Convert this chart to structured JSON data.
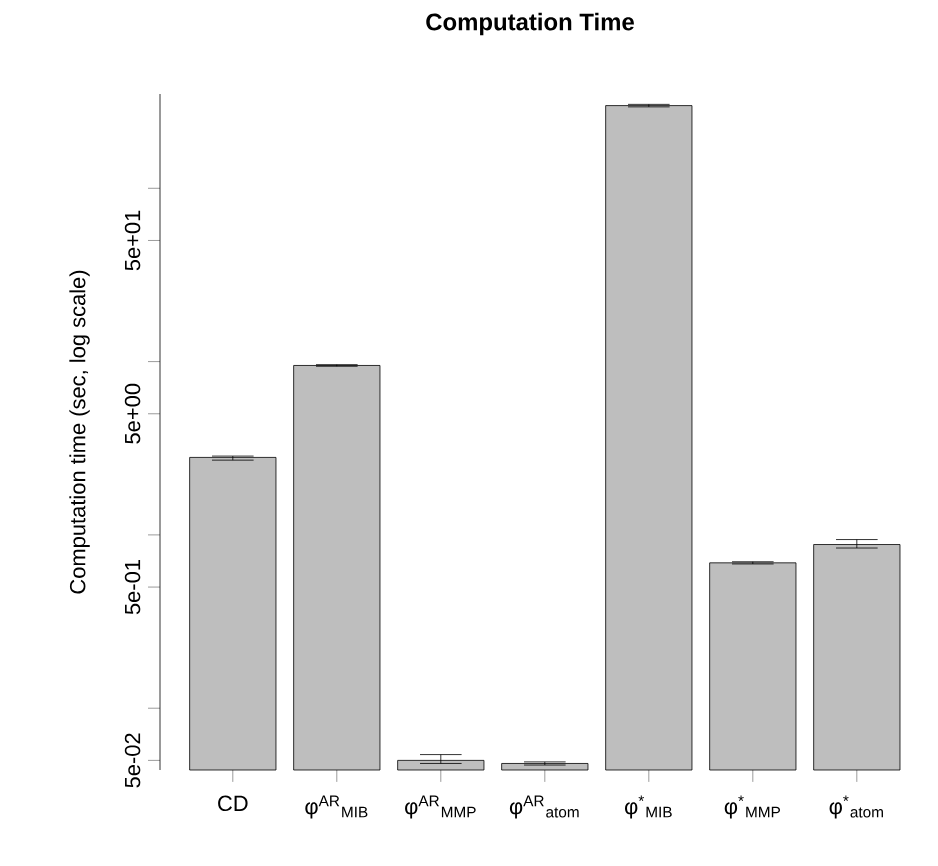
{
  "chart_data": {
    "type": "bar",
    "title": "Computation Time",
    "ylabel": "Computation time (sec, log scale)",
    "categories": [
      "CD",
      "φ$^{AR}$$_{MIB}$",
      "φ$^{AR}$$_{MMP}$",
      "φ$^{AR}$$_{atom}$",
      "φ$^{*}$$_{MIB}$",
      "φ$^{*}$$_{MMP}$",
      "φ$^{*}$$_{atom}$"
    ],
    "values": [
      2.8,
      9.5,
      0.05,
      0.048,
      300,
      0.69,
      0.88
    ],
    "errors": [
      [
        2.7,
        2.85
      ],
      [
        9.4,
        9.6
      ],
      [
        0.048,
        0.054
      ],
      [
        0.047,
        0.049
      ],
      [
        295,
        305
      ],
      [
        0.68,
        0.7
      ],
      [
        0.84,
        0.94
      ]
    ],
    "color": "#bebebe",
    "log": true,
    "ylim": [
      0.044,
      350
    ],
    "yticks": [
      {
        "value": 0.05,
        "label": "5e-02"
      },
      {
        "value": 0.1,
        "label": null
      },
      {
        "value": 0.5,
        "label": "5e-01"
      },
      {
        "value": 1,
        "label": null
      },
      {
        "value": 5,
        "label": "5e+00"
      },
      {
        "value": 10,
        "label": null
      },
      {
        "value": 50,
        "label": "5e+01"
      },
      {
        "value": 100,
        "label": null
      }
    ],
    "grid": false
  }
}
